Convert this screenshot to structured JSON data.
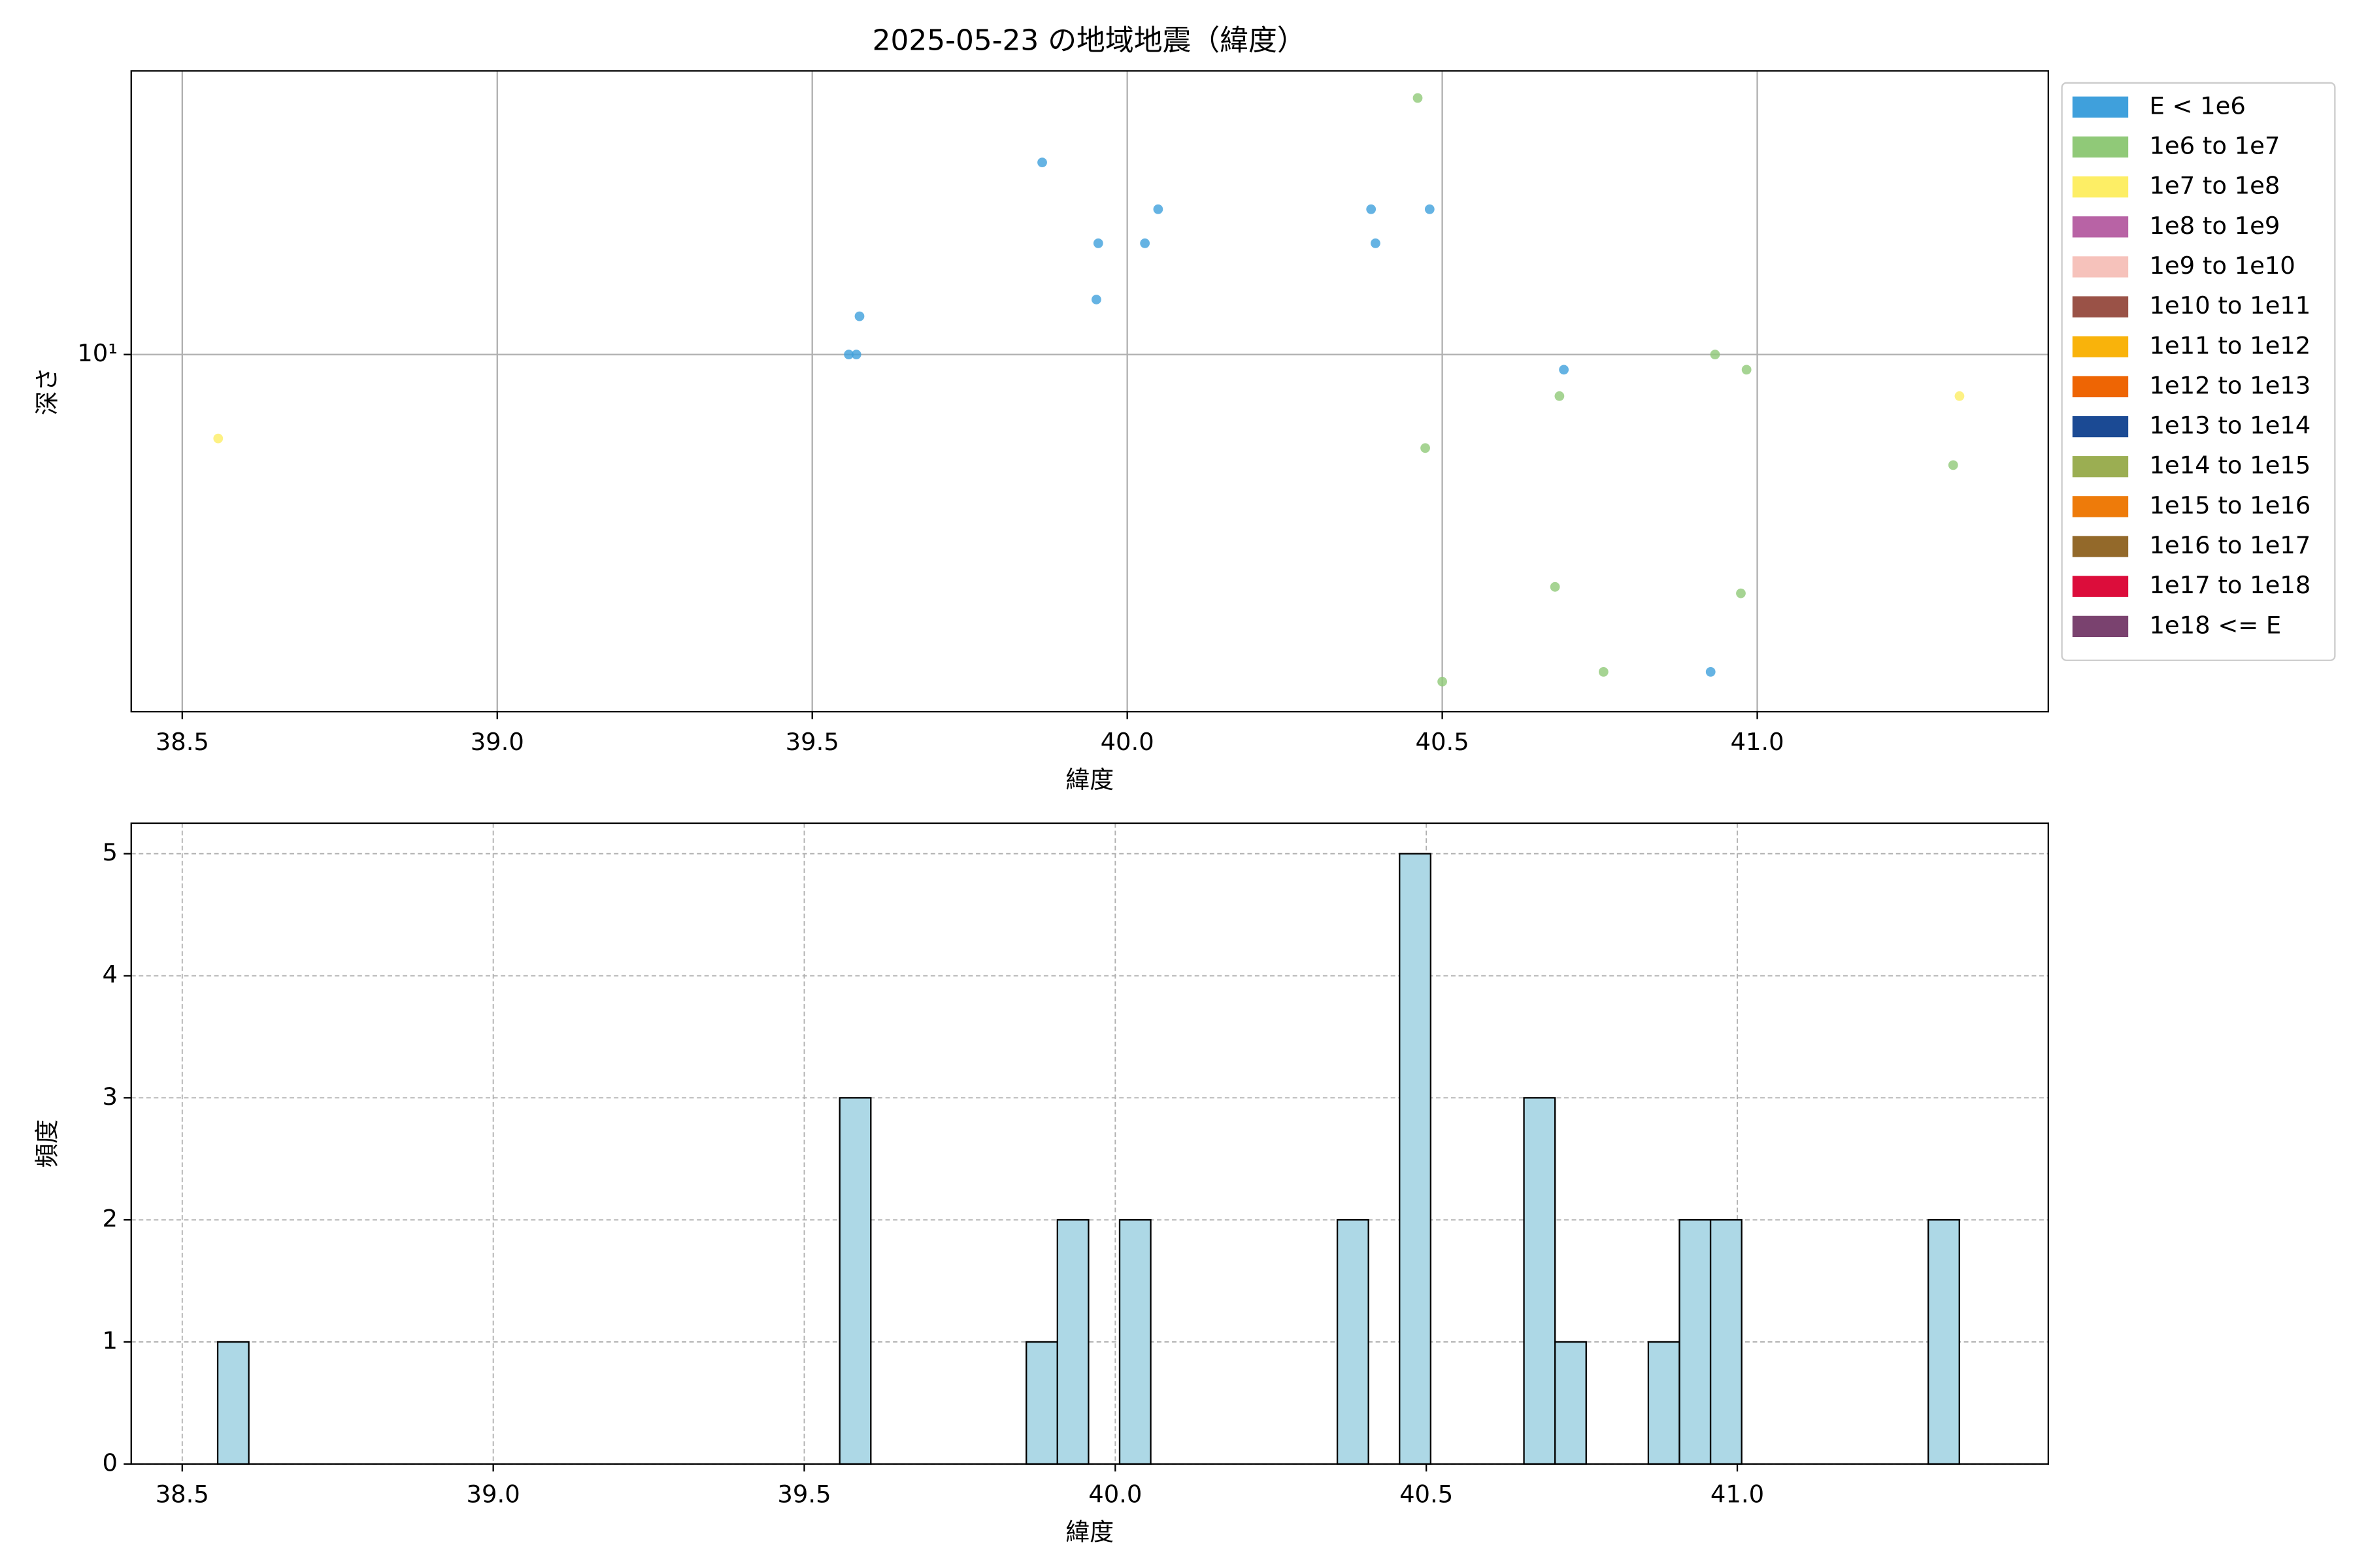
{
  "chart_data": [
    {
      "type": "scatter",
      "title": "2025-05-23 の地域地震（緯度）",
      "x_label": "緯度",
      "y_label": "深さ",
      "xlim": [
        38.419,
        41.462
      ],
      "ylim": [
        1.82,
        38.7
      ],
      "y_log": true,
      "grid": true,
      "legend": "outside-right",
      "xticks": [
        38.5,
        {
          "value": 39.0,
          "label": "39.0"
        },
        39.5,
        {
          "value": 40.0,
          "label": "40.0"
        },
        40.5,
        {
          "value": 41.0,
          "label": "41.0"
        }
      ],
      "yticks": [
        {
          "value": 10,
          "label": "10¹"
        }
      ],
      "series": [
        {
          "name": "E < 1e6",
          "color": "#3fa0dc",
          "x": [
            39.865,
            39.954,
            40.028,
            40.049,
            39.951,
            39.575,
            39.558,
            39.57,
            40.387,
            40.394,
            40.48,
            40.693,
            40.926
          ],
          "values": [
            25,
            17,
            17,
            20,
            13,
            12,
            10,
            10,
            20,
            17,
            20,
            9.3,
            2.2
          ]
        },
        {
          "name": "1e6 to 1e7",
          "color": "#90c978",
          "x": [
            40.461,
            40.686,
            40.473,
            40.679,
            40.5,
            40.756,
            40.933,
            40.983,
            40.974,
            41.311
          ],
          "values": [
            34,
            8.2,
            6.4,
            3.3,
            2.1,
            2.2,
            10,
            9.3,
            3.2,
            5.9
          ]
        },
        {
          "name": "1e7 to 1e8",
          "color": "#fdee65",
          "x": [
            38.557,
            41.321
          ],
          "values": [
            6.7,
            8.2
          ]
        },
        {
          "name": "1e8 to 1e9",
          "color": "#b863a5",
          "x": [],
          "values": []
        },
        {
          "name": "1e9 to 1e10",
          "color": "#f6c2bb",
          "x": [],
          "values": []
        },
        {
          "name": "1e10 to 1e11",
          "color": "#9a5247",
          "x": [],
          "values": []
        },
        {
          "name": "1e11 to 1e12",
          "color": "#f9b30b",
          "x": [],
          "values": []
        },
        {
          "name": "1e12 to 1e13",
          "color": "#ee6504",
          "x": [],
          "values": []
        },
        {
          "name": "1e13 to 1e14",
          "color": "#1b4a94",
          "x": [],
          "values": []
        },
        {
          "name": "1e14 to 1e15",
          "color": "#9bae52",
          "x": [],
          "values": []
        },
        {
          "name": "1e15 to 1e16",
          "color": "#ee7b0a",
          "x": [],
          "values": []
        },
        {
          "name": "1e16 to 1e17",
          "color": "#93692a",
          "x": [],
          "values": []
        },
        {
          "name": "1e17 to 1e18",
          "color": "#dc0d3b",
          "x": [],
          "values": []
        },
        {
          "name": "1e18 <= E",
          "color": "#7a426f",
          "x": [],
          "values": []
        }
      ]
    },
    {
      "type": "histogram",
      "x_label": "緯度",
      "y_label": "頻度",
      "color": "#add8e6",
      "edge_color": "#000000",
      "grid": true,
      "xlim": [
        38.418,
        41.5
      ],
      "ylim": [
        0,
        5.25
      ],
      "xticks": [
        38.5,
        {
          "value": 39.0,
          "label": "39.0"
        },
        39.5,
        {
          "value": 40.0,
          "label": "40.0"
        },
        40.5,
        {
          "value": 41.0,
          "label": "41.0"
        }
      ],
      "yticks": [
        0,
        1,
        2,
        3,
        4,
        5
      ],
      "bins": [
        38.557,
        38.607,
        38.657,
        38.707,
        38.757,
        38.807,
        38.857,
        38.907,
        38.957,
        39.007,
        39.057,
        39.107,
        39.157,
        39.207,
        39.257,
        39.307,
        39.357,
        39.407,
        39.457,
        39.507,
        39.557,
        39.607,
        39.657,
        39.707,
        39.757,
        39.807,
        39.857,
        39.907,
        39.957,
        40.007,
        40.057,
        40.107,
        40.157,
        40.207,
        40.257,
        40.307,
        40.357,
        40.407,
        40.457,
        40.507,
        40.557,
        40.607,
        40.657,
        40.707,
        40.757,
        40.807,
        40.857,
        40.907,
        40.957,
        41.007,
        41.057,
        41.107,
        41.157,
        41.207,
        41.257,
        41.307,
        41.357
      ],
      "values": [
        1,
        0,
        0,
        0,
        0,
        0,
        0,
        0,
        0,
        0,
        0,
        0,
        0,
        0,
        0,
        0,
        0,
        0,
        0,
        0,
        3,
        0,
        0,
        0,
        0,
        0,
        1,
        2,
        0,
        2,
        0,
        0,
        0,
        0,
        0,
        0,
        2,
        0,
        5,
        0,
        0,
        0,
        3,
        1,
        0,
        0,
        1,
        2,
        2,
        0,
        0,
        0,
        0,
        0,
        0,
        2
      ]
    }
  ]
}
